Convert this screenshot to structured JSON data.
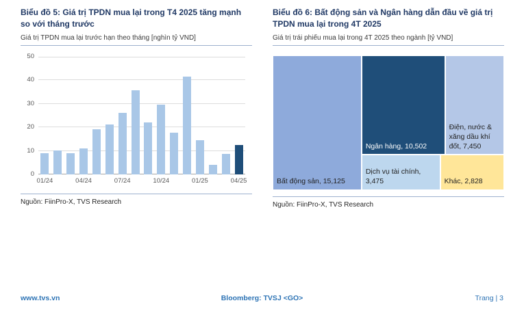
{
  "footer": {
    "website": "www.tvs.vn",
    "bloomberg": "Bloomberg: TVSJ <GO>",
    "page": "Trang | 3"
  },
  "chart_data": [
    {
      "type": "bar",
      "title": "Biểu đồ 5: Giá trị TPDN mua lại trong T4 2025 tăng mạnh so với tháng trước",
      "subtitle": "Giá trị TPDN mua lại trước hạn theo tháng [nghìn tỷ VND]",
      "source": "Nguồn: FiinPro-X, TVS Research",
      "xlabel": "",
      "ylabel": "nghìn tỷ VND",
      "categories": [
        "01/24",
        "02/24",
        "03/24",
        "04/24",
        "05/24",
        "06/24",
        "07/24",
        "08/24",
        "09/24",
        "10/24",
        "11/24",
        "12/24",
        "01/25",
        "02/25",
        "03/25",
        "04/25"
      ],
      "values": [
        9,
        10,
        9,
        11,
        19,
        21,
        26,
        35.5,
        22,
        29.5,
        17.5,
        41.5,
        14.5,
        4,
        8.5,
        12.5
      ],
      "ylim": [
        0,
        50
      ],
      "yticks": [
        0,
        10,
        20,
        30,
        40,
        50
      ],
      "x_tick_every": 3,
      "x_ticks_shown": [
        "01/24",
        "04/24",
        "07/24",
        "10/24",
        "01/25",
        "04/25"
      ],
      "grid": true,
      "bar_color": "#A9C7E7",
      "highlight_index": 15,
      "highlight_color": "#1F4E79"
    },
    {
      "type": "treemap",
      "title": "Biểu đồ 6: Bất động sản và Ngân hàng dẫn đầu về giá trị TPDN mua lại trong 4T 2025",
      "subtitle": "Giá trị trái phiếu mua lại trong 4T 2025 theo ngành [tỷ VND]",
      "source": "Nguồn: FiinPro-X, TVS Research",
      "segments": [
        {
          "label": "Bất động sản",
          "value": 15125,
          "display": "Bất động sản, 15,125",
          "color": "#8EAADB",
          "text_color": "#222222"
        },
        {
          "label": "Ngân hàng",
          "value": 10502,
          "display": "Ngân hàng, 10,502",
          "color": "#1F4E79",
          "text_color": "#FFFFFF"
        },
        {
          "label": "Điện, nước & xăng dầu khí đốt",
          "value": 7450,
          "display": "Điện, nước & xăng dầu khí đốt, 7,450",
          "color": "#B4C7E7",
          "text_color": "#222222"
        },
        {
          "label": "Dịch vụ tài chính",
          "value": 3475,
          "display": "Dịch vụ tài chính, 3,475",
          "color": "#BDD7EE",
          "text_color": "#222222"
        },
        {
          "label": "Khác",
          "value": 2828,
          "display": "Khác, 2,828",
          "color": "#FFE699",
          "text_color": "#222222"
        }
      ]
    }
  ],
  "colors": {
    "title_navy": "#1F3864",
    "rule_blue": "#9DB0CE",
    "footer_blue": "#2E74B5"
  }
}
